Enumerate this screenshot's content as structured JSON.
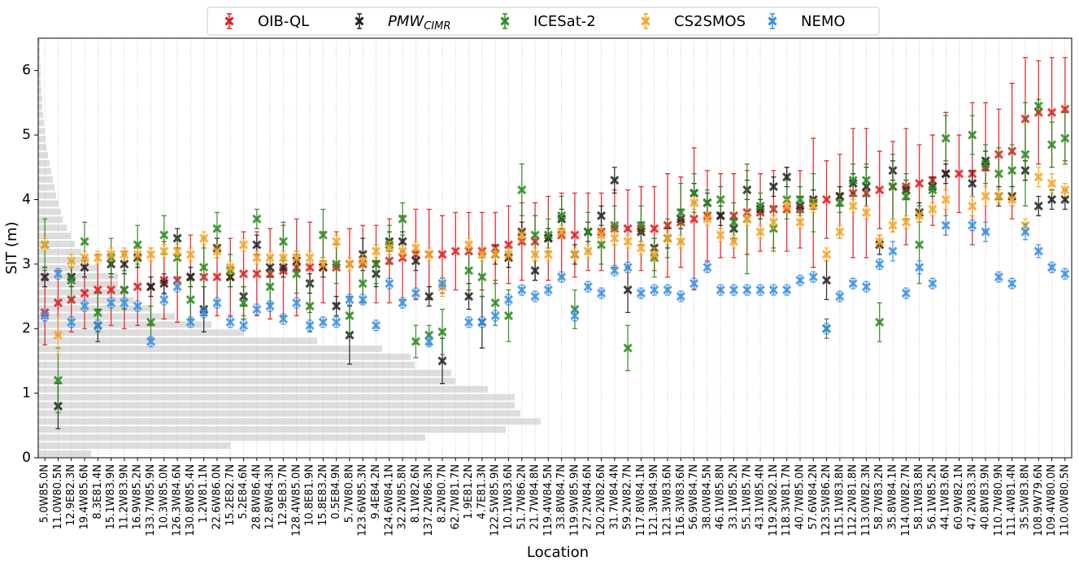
{
  "chart_data": {
    "type": "errorbar",
    "xlabel": "Location",
    "ylabel": "SIT (m)",
    "categories": [
      "5.0W85.0N",
      "11.0W80.5N",
      "12.9E82.3N",
      "19.4W85.6N",
      "8.3E81.4N",
      "15.1W83.9N",
      "11.2W83.9N",
      "16.9W85.2N",
      "133.7W85.9N",
      "10.3W85.0N",
      "126.3W84.6N",
      "130.8W85.4N",
      "1.2W81.1N",
      "22.6W86.0N",
      "15.2E82.7N",
      "5.2E84.6N",
      "28.8W86.4N",
      "12.8W84.3N",
      "12.9E83.7N",
      "128.4W85.0N",
      "10.8E81.9N",
      "15.8E83.2N",
      "0.5E84.9N",
      "5.7W80.8N",
      "123.6W85.3N",
      "9.4E84.2N",
      "124.6W84.1N",
      "32.2W85.8N",
      "8.1W82.6N",
      "137.2W86.3N",
      "8.2W80.7N",
      "62.7W81.7N",
      "1.9E81.2N",
      "4.7E81.3N",
      "122.5W85.9N",
      "10.1W83.6N",
      "51.7W86.2N",
      "21.7W84.8N",
      "119.4W84.5N",
      "33.8W84.7N",
      "119.9W85.9N",
      "27.2W84.6N",
      "120.2W82.6N",
      "31.7W84.4N",
      "59.2W82.7N",
      "117.8W84.1N",
      "121.3W84.9N",
      "121.3W83.6N",
      "116.3W83.6N",
      "56.9W84.7N",
      "38.0W84.5N",
      "46.1W85.8N",
      "33.1W85.2N",
      "55.1W85.7N",
      "43.1W85.4N",
      "119.2W82.1N",
      "118.3W81.7N",
      "40.7W85.0N",
      "57.6W84.2N",
      "123.5W86.2N",
      "115.1W83.8N",
      "112.2W81.8N",
      "113.0W82.3N",
      "58.7W83.2N",
      "35.8W84.1N",
      "114.0W82.7N",
      "58.1W83.8N",
      "56.1W85.2N",
      "44.1W83.6N",
      "60.9W82.1N",
      "47.2W83.3N",
      "40.8W83.9N",
      "110.7W80.9N",
      "111.4W81.4N",
      "35.5W83.8N",
      "108.9W79.6N",
      "109.4W80.0N",
      "110.0W80.5N"
    ],
    "ylim": [
      0,
      6.5
    ],
    "yticks": [
      0,
      1,
      2,
      3,
      4,
      5,
      6
    ],
    "grid": true,
    "legend": "top",
    "series": [
      {
        "name": "OIB-QL",
        "color": "#e41a1c",
        "values": [
          2.25,
          2.4,
          2.45,
          2.55,
          2.6,
          2.6,
          2.6,
          2.65,
          2.65,
          2.75,
          2.75,
          2.8,
          2.8,
          2.8,
          2.8,
          2.85,
          2.85,
          2.85,
          2.9,
          2.95,
          2.95,
          2.95,
          2.95,
          3.0,
          3.0,
          3.0,
          3.05,
          3.1,
          3.15,
          3.15,
          3.15,
          3.2,
          3.2,
          3.2,
          3.25,
          3.3,
          3.35,
          3.35,
          3.4,
          3.45,
          3.45,
          3.5,
          3.5,
          3.55,
          3.55,
          3.55,
          3.55,
          3.6,
          3.65,
          3.7,
          3.75,
          3.75,
          3.75,
          3.8,
          3.8,
          3.85,
          3.85,
          3.85,
          3.95,
          4.0,
          4.05,
          4.1,
          4.1,
          4.15,
          4.2,
          4.2,
          4.25,
          4.3,
          4.4,
          4.4,
          4.4,
          4.5,
          4.7,
          4.75,
          5.25,
          5.35,
          5.35,
          5.4
        ],
        "errors": [
          0.5,
          0.5,
          0.5,
          0.55,
          0.55,
          0.55,
          0.6,
          0.6,
          0.6,
          0.6,
          0.65,
          0.65,
          0.6,
          0.6,
          0.6,
          0.65,
          0.65,
          0.7,
          0.7,
          0.75,
          0.7,
          0.55,
          0.55,
          0.55,
          0.6,
          0.6,
          0.65,
          0.65,
          0.7,
          0.7,
          0.6,
          0.6,
          0.6,
          0.6,
          0.55,
          0.6,
          0.6,
          0.6,
          0.65,
          0.65,
          0.65,
          0.6,
          0.6,
          0.6,
          0.6,
          0.65,
          0.65,
          0.8,
          0.7,
          1.1,
          0.7,
          0.65,
          0.65,
          0.65,
          0.6,
          0.6,
          0.65,
          0.6,
          1.0,
          0.6,
          0.65,
          1.0,
          1.0,
          0.6,
          0.7,
          0.9,
          0.6,
          0.7,
          0.95,
          0.6,
          1.1,
          1.0,
          0.7,
          1.05,
          0.95,
          0.8,
          0.85,
          0.8
        ]
      },
      {
        "name": "PMW",
        "subscript": "CIMR",
        "color": "#222222",
        "values": [
          2.8,
          0.8,
          2.8,
          2.95,
          2.05,
          3.0,
          3.0,
          3.1,
          2.65,
          2.7,
          3.4,
          2.8,
          2.3,
          3.25,
          2.8,
          2.5,
          3.3,
          2.95,
          2.95,
          3.05,
          2.7,
          2.95,
          2.35,
          1.9,
          3.15,
          2.85,
          3.35,
          3.35,
          3.05,
          2.5,
          1.5,
          null,
          2.5,
          2.1,
          3.15,
          3.1,
          3.5,
          2.9,
          3.4,
          3.7,
          3.15,
          3.5,
          3.75,
          4.3,
          2.6,
          3.5,
          3.25,
          3.4,
          3.7,
          4.1,
          3.95,
          3.75,
          3.55,
          4.15,
          3.85,
          4.2,
          4.35,
          3.9,
          4.0,
          2.75,
          4.05,
          4.25,
          4.2,
          3.3,
          4.45,
          4.15,
          3.8,
          4.2,
          4.4,
          null,
          4.25,
          4.6,
          4.05,
          4.05,
          4.45,
          3.9,
          4.0,
          4.0
        ],
        "errors": [
          0.15,
          0.35,
          0.15,
          0.15,
          0.25,
          0.15,
          0.15,
          0.15,
          0.15,
          0.15,
          0.15,
          0.15,
          0.35,
          0.15,
          0.15,
          0.15,
          0.15,
          0.15,
          0.15,
          0.15,
          0.15,
          0.15,
          0.15,
          0.45,
          0.25,
          0.2,
          0.15,
          0.15,
          0.15,
          0.15,
          0.35,
          null,
          0.2,
          0.4,
          0.15,
          0.15,
          0.15,
          0.15,
          0.15,
          0.15,
          0.15,
          0.15,
          0.15,
          0.2,
          0.35,
          0.15,
          0.15,
          0.15,
          0.15,
          0.15,
          0.15,
          0.15,
          0.15,
          0.15,
          0.15,
          0.15,
          0.15,
          0.15,
          0.15,
          0.3,
          0.15,
          0.15,
          0.3,
          0.15,
          0.15,
          0.15,
          0.15,
          0.15,
          0.15,
          null,
          0.2,
          0.15,
          0.15,
          0.15,
          0.15,
          0.15,
          0.15,
          0.15
        ]
      },
      {
        "name": "ICESat-2",
        "color": "#2a8a1f",
        "values": [
          3.3,
          1.2,
          2.75,
          3.35,
          2.25,
          3.1,
          2.6,
          3.3,
          2.1,
          3.45,
          3.1,
          2.45,
          2.95,
          3.55,
          2.9,
          2.4,
          3.7,
          2.65,
          3.35,
          2.85,
          2.35,
          3.45,
          3.0,
          2.2,
          2.7,
          3.0,
          3.3,
          3.7,
          1.8,
          1.9,
          1.95,
          null,
          2.9,
          2.8,
          2.4,
          2.2,
          4.15,
          3.45,
          3.45,
          3.75,
          2.3,
          3.5,
          3.3,
          3.6,
          1.7,
          3.6,
          3.1,
          3.4,
          3.8,
          4.1,
          3.95,
          4.0,
          3.65,
          3.7,
          3.9,
          3.55,
          4.0,
          4.0,
          3.95,
          2.0,
          3.95,
          4.3,
          4.3,
          2.1,
          4.2,
          4.05,
          3.3,
          4.15,
          4.95,
          null,
          5.0,
          4.55,
          4.4,
          4.45,
          4.7,
          5.45,
          4.85,
          4.95
        ],
        "errors": [
          0.4,
          0.5,
          0.3,
          0.3,
          0.3,
          0.3,
          0.3,
          0.3,
          0.25,
          0.3,
          0.3,
          0.3,
          0.3,
          0.25,
          0.25,
          0.25,
          0.15,
          0.25,
          0.3,
          0.3,
          0.4,
          0.4,
          0.3,
          0.3,
          0.3,
          0.3,
          0.3,
          0.25,
          0.25,
          0.15,
          0.35,
          null,
          0.3,
          0.3,
          0.35,
          0.4,
          0.4,
          0.3,
          0.25,
          0.3,
          0.3,
          0.3,
          0.3,
          0.3,
          0.35,
          0.3,
          0.3,
          0.3,
          0.45,
          0.3,
          0.2,
          0.2,
          0.3,
          0.85,
          0.2,
          0.35,
          0.3,
          0.2,
          0.45,
          0.15,
          0.15,
          0.25,
          0.25,
          0.3,
          0.5,
          0.35,
          0.6,
          0.1,
          0.35,
          null,
          0.3,
          0.3,
          0.4,
          0.4,
          0.8,
          0.1,
          0.35,
          0.4
        ]
      },
      {
        "name": "CS2SMOS",
        "color": "#f5a623",
        "values": [
          3.3,
          1.9,
          3.05,
          3.1,
          3.1,
          3.15,
          3.15,
          3.15,
          3.15,
          3.2,
          3.2,
          3.15,
          3.4,
          3.2,
          2.95,
          3.3,
          3.1,
          3.1,
          3.1,
          3.1,
          3.1,
          3.0,
          3.35,
          3.0,
          3.05,
          3.2,
          3.25,
          3.2,
          3.25,
          3.15,
          2.65,
          null,
          3.3,
          3.15,
          3.15,
          3.15,
          3.45,
          3.15,
          3.15,
          3.5,
          3.15,
          3.2,
          3.45,
          3.4,
          3.35,
          3.25,
          3.15,
          3.4,
          3.35,
          3.95,
          3.7,
          3.45,
          3.35,
          3.7,
          3.5,
          3.65,
          3.9,
          3.65,
          3.9,
          3.15,
          3.5,
          3.9,
          3.8,
          3.35,
          3.6,
          3.65,
          3.75,
          3.85,
          4.0,
          null,
          3.9,
          4.05,
          4.05,
          4.0,
          3.6,
          4.35,
          4.25,
          4.15
        ],
        "errors": [
          0.1,
          0.3,
          0.1,
          0.1,
          0.1,
          0.1,
          0.1,
          0.1,
          0.1,
          0.1,
          0.1,
          0.1,
          0.1,
          0.1,
          0.1,
          0.1,
          0.1,
          0.1,
          0.1,
          0.1,
          0.1,
          0.1,
          0.1,
          0.1,
          0.1,
          0.1,
          0.1,
          0.1,
          0.1,
          0.1,
          0.15,
          null,
          0.1,
          0.1,
          0.1,
          0.1,
          0.1,
          0.1,
          0.1,
          0.1,
          0.1,
          0.1,
          0.1,
          0.1,
          0.1,
          0.1,
          0.1,
          0.1,
          0.1,
          0.1,
          0.1,
          0.1,
          0.1,
          0.1,
          0.1,
          0.1,
          0.1,
          0.1,
          0.1,
          0.1,
          0.1,
          0.1,
          0.1,
          0.1,
          0.1,
          0.1,
          0.1,
          0.1,
          0.15,
          null,
          0.15,
          0.15,
          0.1,
          0.1,
          0.1,
          0.15,
          0.15,
          0.1
        ]
      },
      {
        "name": "NEMO",
        "color": "#3a8fe0",
        "values": [
          2.2,
          2.85,
          2.1,
          2.35,
          2.05,
          2.4,
          2.4,
          2.35,
          1.8,
          2.45,
          2.65,
          2.1,
          2.25,
          2.4,
          2.1,
          2.05,
          2.3,
          2.35,
          2.15,
          2.4,
          2.05,
          2.1,
          2.1,
          2.45,
          2.45,
          2.05,
          2.7,
          2.4,
          2.55,
          1.8,
          2.7,
          null,
          2.1,
          2.1,
          2.2,
          2.45,
          2.6,
          2.5,
          2.6,
          2.8,
          2.2,
          2.65,
          2.55,
          2.9,
          2.95,
          2.55,
          2.6,
          2.6,
          2.5,
          2.7,
          2.95,
          2.6,
          2.6,
          2.6,
          2.6,
          2.6,
          2.6,
          2.75,
          2.8,
          2.0,
          2.5,
          2.7,
          2.65,
          3.0,
          3.2,
          2.55,
          2.95,
          2.7,
          3.6,
          null,
          3.6,
          3.5,
          2.8,
          2.7,
          3.5,
          3.2,
          2.95,
          2.85
        ],
        "errors": [
          0.08,
          0.08,
          0.08,
          0.08,
          0.08,
          0.08,
          0.08,
          0.08,
          0.08,
          0.08,
          0.08,
          0.08,
          0.08,
          0.08,
          0.08,
          0.08,
          0.08,
          0.08,
          0.08,
          0.08,
          0.08,
          0.08,
          0.08,
          0.08,
          0.08,
          0.08,
          0.08,
          0.08,
          0.08,
          0.08,
          0.08,
          null,
          0.08,
          0.08,
          0.08,
          0.08,
          0.08,
          0.08,
          0.08,
          0.08,
          0.08,
          0.08,
          0.08,
          0.08,
          0.08,
          0.08,
          0.08,
          0.08,
          0.08,
          0.08,
          0.08,
          0.08,
          0.08,
          0.08,
          0.08,
          0.08,
          0.08,
          0.08,
          0.08,
          0.08,
          0.08,
          0.08,
          0.08,
          0.08,
          0.15,
          0.08,
          0.1,
          0.08,
          0.15,
          null,
          0.08,
          0.15,
          0.08,
          0.08,
          0.12,
          0.1,
          0.08,
          0.08
        ]
      }
    ],
    "histogram": {
      "color": "#dddddd",
      "bins": [
        0,
        0.125,
        0.25,
        0.375,
        0.5,
        0.625,
        0.75,
        0.875,
        1,
        1.125,
        1.25,
        1.375,
        1.5,
        1.625,
        1.75,
        1.875,
        2,
        2.125,
        2.25,
        2.375,
        2.5,
        2.625,
        2.75,
        2.875,
        3,
        3.125,
        3.25,
        3.375,
        3.5,
        3.625,
        3.75,
        3.875,
        4,
        4.125,
        4.25,
        4.375,
        4.5,
        4.625,
        4.75,
        4.875,
        5,
        5.125,
        5.25,
        5.375,
        5.5,
        5.625,
        5.75,
        5.875,
        6,
        6.125,
        6.25,
        6.375,
        6.5
      ],
      "counts": [
        65,
        236,
        476,
        575,
        618,
        593,
        586,
        586,
        553,
        513,
        508,
        463,
        458,
        423,
        343,
        253,
        213,
        168,
        138,
        118,
        108,
        98,
        98,
        73,
        63,
        53,
        45,
        40,
        35,
        30,
        28,
        25,
        22,
        20,
        18,
        16,
        14,
        12,
        10,
        9,
        8,
        7,
        6,
        5,
        5,
        4,
        3,
        3,
        3,
        2,
        2,
        2
      ]
    }
  }
}
